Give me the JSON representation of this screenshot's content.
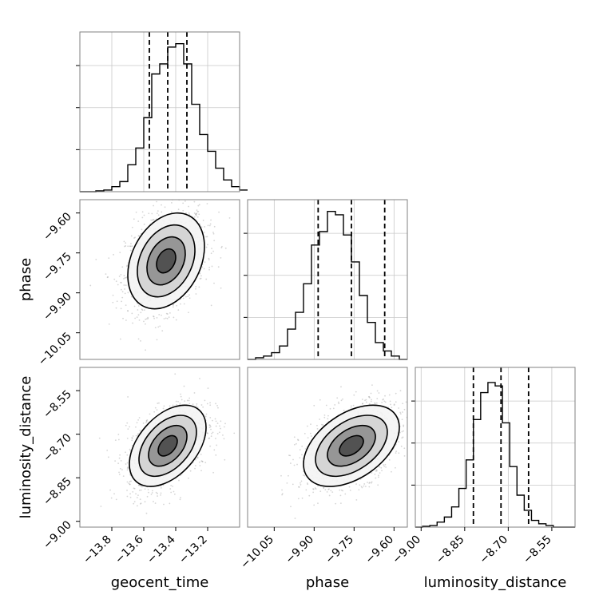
{
  "chart_data": {
    "type": "corner",
    "parameters": [
      "geocent_time",
      "phase",
      "luminosity_distance"
    ],
    "grid": true,
    "quantile_lines": "dashed",
    "ranges": {
      "geocent_time": [
        -14.0,
        -13.0
      ],
      "phase": [
        -10.15,
        -9.55
      ],
      "luminosity_distance": [
        -9.02,
        -8.47
      ]
    },
    "ticks": {
      "geocent_time": [
        {
          "v": -13.8,
          "label": "−13.8"
        },
        {
          "v": -13.6,
          "label": "−13.6"
        },
        {
          "v": -13.4,
          "label": "−13.4"
        },
        {
          "v": -13.2,
          "label": "−13.2"
        }
      ],
      "phase": [
        {
          "v": -10.05,
          "label": "−10.05"
        },
        {
          "v": -9.9,
          "label": "−9.90"
        },
        {
          "v": -9.75,
          "label": "−9.75"
        },
        {
          "v": -9.6,
          "label": "−9.60"
        }
      ],
      "luminosity_distance": [
        {
          "v": -9.0,
          "label": "−9.00"
        },
        {
          "v": -8.85,
          "label": "−8.85"
        },
        {
          "v": -8.7,
          "label": "−8.70"
        },
        {
          "v": -8.55,
          "label": "−8.55"
        }
      ]
    },
    "histograms": [
      {
        "parameter": "geocent_time",
        "bin_start": -14.0,
        "bin_width": 0.05,
        "counts": [
          0.0,
          0.0,
          0.005,
          0.01,
          0.03,
          0.06,
          0.16,
          0.26,
          0.44,
          0.7,
          0.76,
          0.86,
          0.88,
          0.76,
          0.52,
          0.34,
          0.24,
          0.14,
          0.07,
          0.03,
          0.01
        ],
        "quantiles": [
          -13.565,
          -13.45,
          -13.33
        ]
      },
      {
        "parameter": "phase",
        "bin_start": -10.15,
        "bin_width": 0.03,
        "counts": [
          0.0,
          0.01,
          0.02,
          0.04,
          0.08,
          0.18,
          0.28,
          0.45,
          0.68,
          0.76,
          0.88,
          0.86,
          0.74,
          0.58,
          0.38,
          0.22,
          0.1,
          0.05,
          0.02,
          0.0
        ],
        "quantiles": [
          -9.885,
          -9.76,
          -9.635
        ]
      },
      {
        "parameter": "luminosity_distance",
        "bin_start": -9.02,
        "bin_width": 0.025,
        "counts": [
          0.0,
          0.005,
          0.01,
          0.03,
          0.06,
          0.12,
          0.23,
          0.4,
          0.64,
          0.8,
          0.86,
          0.84,
          0.62,
          0.36,
          0.19,
          0.1,
          0.04,
          0.02,
          0.01,
          0.0,
          0.0,
          0.0
        ],
        "quantiles": [
          -8.82,
          -8.725,
          -8.63
        ]
      }
    ],
    "scatter_panels": [
      {
        "x": "geocent_time",
        "y": "phase",
        "peak": [
          -13.46,
          -9.78
        ],
        "sigma_levels": [
          0.5,
          1.0,
          1.5,
          2.0
        ],
        "sx": 0.12,
        "sy": 0.09,
        "rho": 0.3
      },
      {
        "x": "geocent_time",
        "y": "luminosity_distance",
        "peak": [
          -13.45,
          -8.74
        ],
        "sigma_levels": [
          0.5,
          1.0,
          1.5,
          2.0
        ],
        "sx": 0.12,
        "sy": 0.07,
        "rho": 0.45
      },
      {
        "x": "phase",
        "y": "luminosity_distance",
        "peak": [
          -9.76,
          -8.74
        ],
        "sigma_levels": [
          0.5,
          1.0,
          1.5,
          2.0
        ],
        "sx": 0.09,
        "sy": 0.07,
        "rho": 0.45
      }
    ]
  }
}
